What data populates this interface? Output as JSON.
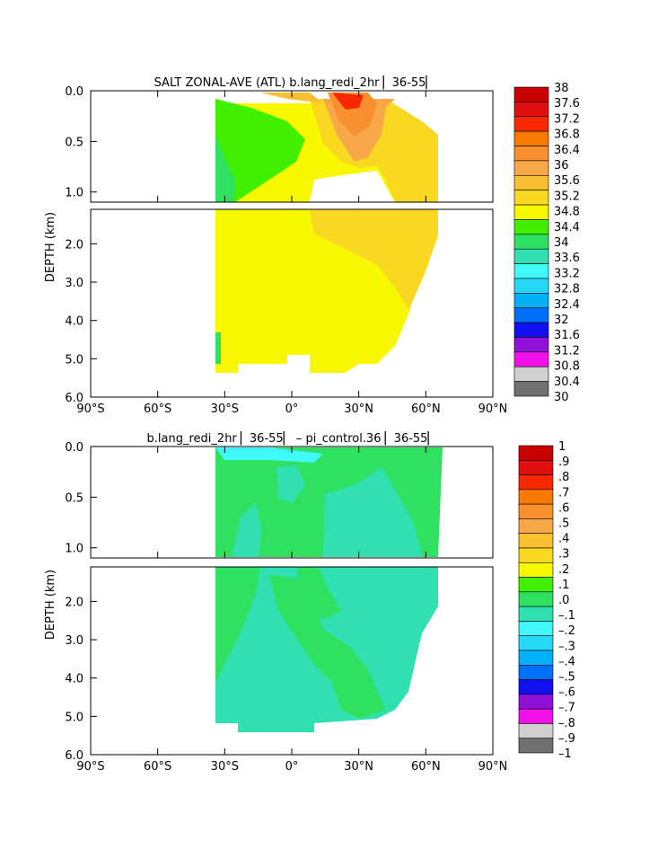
{
  "chart_data": [
    {
      "type": "heatmap",
      "title": "SALT ZONAL-AVE (ATL) b.lang_redi_2hr ▏36-55▏",
      "ylabel": "DEPTH (km)",
      "xticks": [
        "90°S",
        "60°S",
        "30°S",
        "0°",
        "30°N",
        "60°N",
        "90°N"
      ],
      "xlim": [
        -90,
        90
      ],
      "ylim": [
        6.0,
        0.0
      ],
      "upper_yticks": [
        "0.0",
        "0.5",
        "1.0"
      ],
      "lower_yticks": [
        "2.0",
        "3.0",
        "4.0",
        "5.0",
        "6.0"
      ],
      "colorbar": {
        "labels": [
          "38",
          "37.6",
          "37.2",
          "36.8",
          "36.4",
          "36",
          "35.6",
          "35.2",
          "34.8",
          "34.4",
          "34",
          "33.6",
          "33.2",
          "32.8",
          "32.4",
          "32",
          "31.6",
          "31.2",
          "30.8",
          "30.4",
          "30"
        ],
        "colors": [
          "#c80000",
          "#e01010",
          "#f82800",
          "#f87800",
          "#f89030",
          "#f8a848",
          "#f8c030",
          "#f8d820",
          "#f8f800",
          "#40f000",
          "#30e060",
          "#30e0b0",
          "#40f8f8",
          "#28d8f8",
          "#00b0f8",
          "#0070f8",
          "#1010f0",
          "#9010d8",
          "#f010e8",
          "#d0d0d0",
          "#707070"
        ]
      },
      "dominant_level": 35.0
    },
    {
      "type": "heatmap",
      "title": "b.lang_redi_2hr ▏36-55▏ – pi_control.36 ▏36-55▏",
      "ylabel": "DEPTH (km)",
      "xticks": [
        "90°S",
        "60°S",
        "30°S",
        "0°",
        "30°N",
        "60°N",
        "90°N"
      ],
      "xlim": [
        -90,
        90
      ],
      "ylim": [
        6.0,
        0.0
      ],
      "upper_yticks": [
        "0.0",
        "0.5",
        "1.0"
      ],
      "lower_yticks": [
        "2.0",
        "3.0",
        "4.0",
        "5.0",
        "6.0"
      ],
      "colorbar": {
        "labels": [
          "1",
          ".9",
          ".8",
          ".7",
          ".6",
          ".5",
          ".4",
          ".3",
          ".2",
          ".1",
          ".0",
          "–.1",
          "–.2",
          "–.3",
          "–.4",
          "–.5",
          "–.6",
          "–.7",
          "–.8",
          "–.9",
          "–1"
        ],
        "colors": [
          "#c80000",
          "#e01010",
          "#f82800",
          "#f87800",
          "#f89030",
          "#f8a848",
          "#f8c030",
          "#f8d820",
          "#f8f800",
          "#40f000",
          "#30e060",
          "#30e0b0",
          "#40f8f8",
          "#28d8f8",
          "#00b0f8",
          "#0070f8",
          "#1010f0",
          "#9010d8",
          "#f010e8",
          "#d0d0d0",
          "#707070"
        ]
      },
      "dominant_level": 0.0
    }
  ]
}
